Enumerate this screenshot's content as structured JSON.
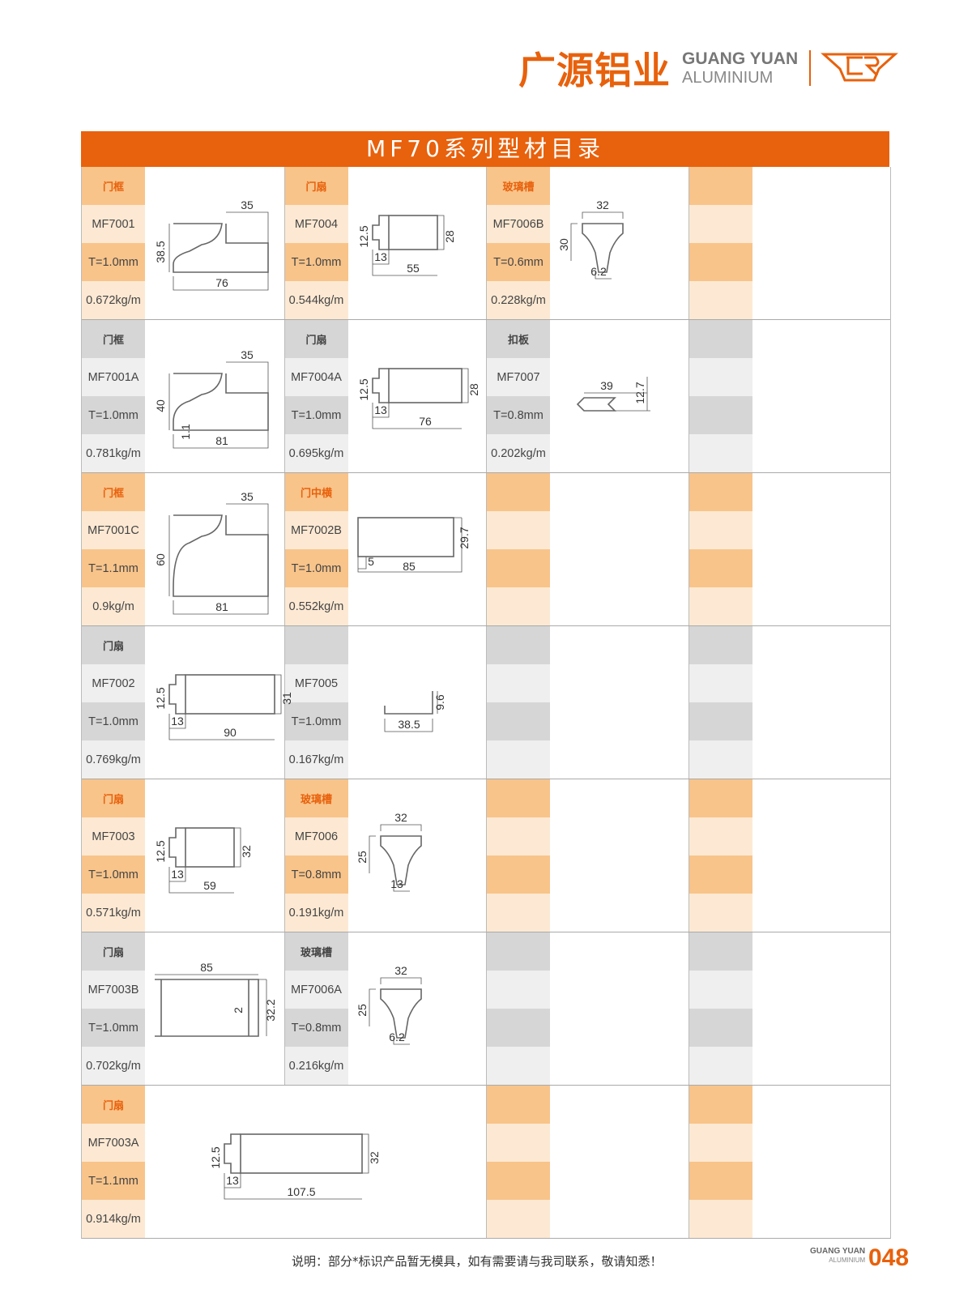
{
  "header": {
    "brand_cn": "广源铝业",
    "brand_en_1": "GUANG YUAN",
    "brand_en_2": "ALUMINIUM",
    "brand_color": "#e8610c"
  },
  "title": "MF70系列型材目录",
  "colors": {
    "orange_dark": "#f8c48a",
    "orange_light": "#fde9d3",
    "grey_dark": "#d6d6d6",
    "grey_light": "#efefef"
  },
  "rows": [
    {
      "tone": "o",
      "cells": [
        {
          "category": "门框",
          "code": "MF7001",
          "thickness": "T=1.0mm",
          "weight": "0.672kg/m",
          "shape": "frame",
          "dims": [
            "35",
            "38.5",
            "76"
          ]
        },
        {
          "category": "门扇",
          "code": "MF7004",
          "thickness": "T=1.0mm",
          "weight": "0.544kg/m",
          "shape": "sash",
          "dims": [
            "12.5",
            "28",
            "13",
            "55"
          ]
        },
        {
          "category": "玻璃槽",
          "code": "MF7006B",
          "thickness": "T=0.6mm",
          "weight": "0.228kg/m",
          "shape": "glazing",
          "dims": [
            "32",
            "30",
            "6.2"
          ]
        },
        {
          "category": "",
          "code": "",
          "thickness": "",
          "weight": "",
          "shape": "",
          "dims": []
        }
      ]
    },
    {
      "tone": "g",
      "cells": [
        {
          "category": "门框",
          "code": "MF7001A",
          "thickness": "T=1.0mm",
          "weight": "0.781kg/m",
          "shape": "frame",
          "dims": [
            "35",
            "40",
            "81",
            "1.1"
          ]
        },
        {
          "category": "门扇",
          "code": "MF7004A",
          "thickness": "T=1.0mm",
          "weight": "0.695kg/m",
          "shape": "sash",
          "dims": [
            "12.5",
            "28",
            "13",
            "76"
          ]
        },
        {
          "category": "扣板",
          "code": "MF7007",
          "thickness": "T=0.8mm",
          "weight": "0.202kg/m",
          "shape": "plate",
          "dims": [
            "39",
            "12.7"
          ]
        },
        {
          "category": "",
          "code": "",
          "thickness": "",
          "weight": "",
          "shape": "",
          "dims": []
        }
      ]
    },
    {
      "tone": "o",
      "cells": [
        {
          "category": "门框",
          "code": "MF7001C",
          "thickness": "T=1.1mm",
          "weight": "0.9kg/m",
          "shape": "frame",
          "dims": [
            "35",
            "60",
            "81"
          ]
        },
        {
          "category": "门中横",
          "code": "MF7002B",
          "thickness": "T=1.0mm",
          "weight": "0.552kg/m",
          "shape": "transom",
          "dims": [
            "29.7",
            "5",
            "85"
          ]
        },
        {
          "category": "",
          "code": "",
          "thickness": "",
          "weight": "",
          "shape": "",
          "dims": []
        },
        {
          "category": "",
          "code": "",
          "thickness": "",
          "weight": "",
          "shape": "",
          "dims": []
        }
      ]
    },
    {
      "tone": "g",
      "cells": [
        {
          "category": "门扇",
          "code": "MF7002",
          "thickness": "T=1.0mm",
          "weight": "0.769kg/m",
          "shape": "sash",
          "dims": [
            "12.5",
            "31",
            "13",
            "90"
          ]
        },
        {
          "category": "",
          "code": "MF7005",
          "thickness": "T=1.0mm",
          "weight": "0.167kg/m",
          "shape": "angle",
          "dims": [
            "9.6",
            "38.5"
          ]
        },
        {
          "category": "",
          "code": "",
          "thickness": "",
          "weight": "",
          "shape": "",
          "dims": []
        },
        {
          "category": "",
          "code": "",
          "thickness": "",
          "weight": "",
          "shape": "",
          "dims": []
        }
      ]
    },
    {
      "tone": "o",
      "cells": [
        {
          "category": "门扇",
          "code": "MF7003",
          "thickness": "T=1.0mm",
          "weight": "0.571kg/m",
          "shape": "sash",
          "dims": [
            "12.5",
            "32",
            "13",
            "59"
          ]
        },
        {
          "category": "玻璃槽",
          "code": "MF7006",
          "thickness": "T=0.8mm",
          "weight": "0.191kg/m",
          "shape": "glazing",
          "dims": [
            "32",
            "25",
            "13"
          ]
        },
        {
          "category": "",
          "code": "",
          "thickness": "",
          "weight": "",
          "shape": "",
          "dims": []
        },
        {
          "category": "",
          "code": "",
          "thickness": "",
          "weight": "",
          "shape": "",
          "dims": []
        }
      ]
    },
    {
      "tone": "g",
      "cells": [
        {
          "category": "门扇",
          "code": "MF7003B",
          "thickness": "T=1.0mm",
          "weight": "0.702kg/m",
          "shape": "channel",
          "dims": [
            "85",
            "2",
            "32.2"
          ]
        },
        {
          "category": "玻璃槽",
          "code": "MF7006A",
          "thickness": "T=0.8mm",
          "weight": "0.216kg/m",
          "shape": "glazing",
          "dims": [
            "32",
            "25",
            "6.2"
          ]
        },
        {
          "category": "",
          "code": "",
          "thickness": "",
          "weight": "",
          "shape": "",
          "dims": []
        },
        {
          "category": "",
          "code": "",
          "thickness": "",
          "weight": "",
          "shape": "",
          "dims": []
        }
      ]
    },
    {
      "tone": "o",
      "cells": [
        {
          "category": "门扇",
          "code": "MF7003A",
          "thickness": "T=1.1mm",
          "weight": "0.914kg/m",
          "shape": "sash-wide",
          "dims": [
            "12.5",
            "32",
            "13",
            "107.5"
          ],
          "span": 2
        },
        {
          "category": "",
          "code": "",
          "thickness": "",
          "weight": "",
          "shape": "",
          "dims": []
        },
        {
          "category": "",
          "code": "",
          "thickness": "",
          "weight": "",
          "shape": "",
          "dims": []
        }
      ]
    }
  ],
  "footer": {
    "note": "说明：部分*标识产品暂无模具，如有需要请与我司联系，敬请知悉！",
    "brand_1": "GUANG YUAN",
    "brand_2": "ALUMINIUM",
    "page": "048"
  }
}
